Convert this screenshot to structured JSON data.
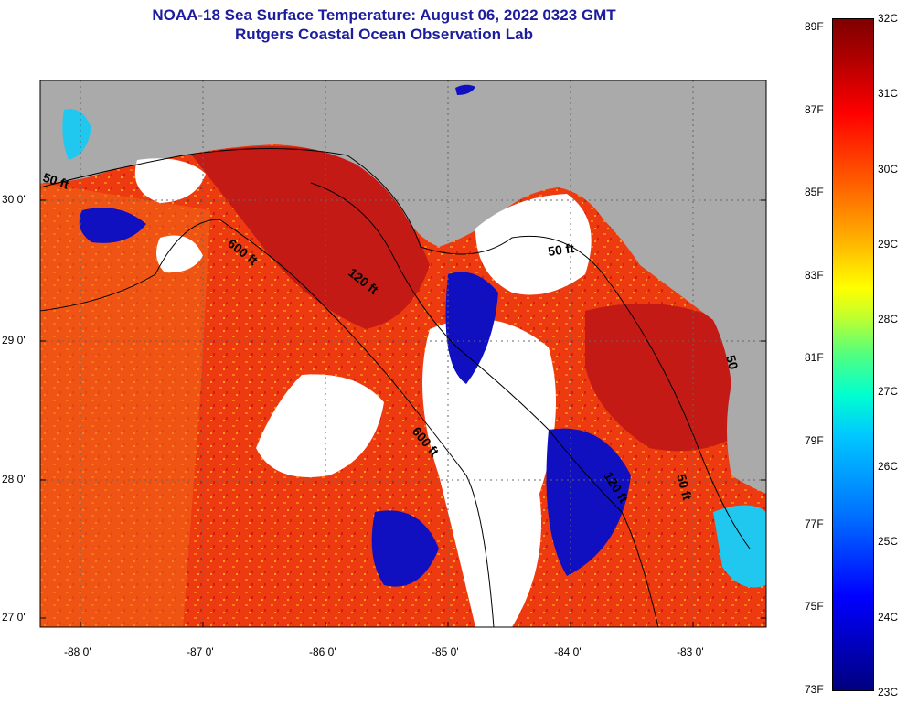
{
  "header": {
    "title_line1": "NOAA-18 Sea Surface Temperature:  August 06, 2022 0323 GMT",
    "title_line2": "Rutgers Coastal Ocean Observation Lab"
  },
  "map": {
    "lat_labels": [
      "30 0'",
      "29 0'",
      "28 0'",
      "27 0'"
    ],
    "lon_labels": [
      "-88 0'",
      "-87 0'",
      "-86 0'",
      "-85 0'",
      "-84 0'",
      "-83 0'"
    ],
    "contour_labels": [
      "50 ft",
      "600 ft",
      "120 ft",
      "50 ft",
      "600 ft",
      "120 ft",
      "50 ft",
      "50"
    ],
    "colors": {
      "land": "#aaaaaa",
      "cloud": "#ffffff",
      "warm_sea": "#f03010",
      "hot_sea": "#c41414",
      "cool_sea": "#1010c8"
    }
  },
  "colorbar": {
    "fahrenheit_labels": [
      "89F",
      "87F",
      "85F",
      "83F",
      "81F",
      "79F",
      "77F",
      "75F",
      "73F"
    ],
    "celsius_labels": [
      "32C",
      "31C",
      "30C",
      "29C",
      "28C",
      "27C",
      "26C",
      "25C",
      "24C",
      "23C"
    ]
  }
}
